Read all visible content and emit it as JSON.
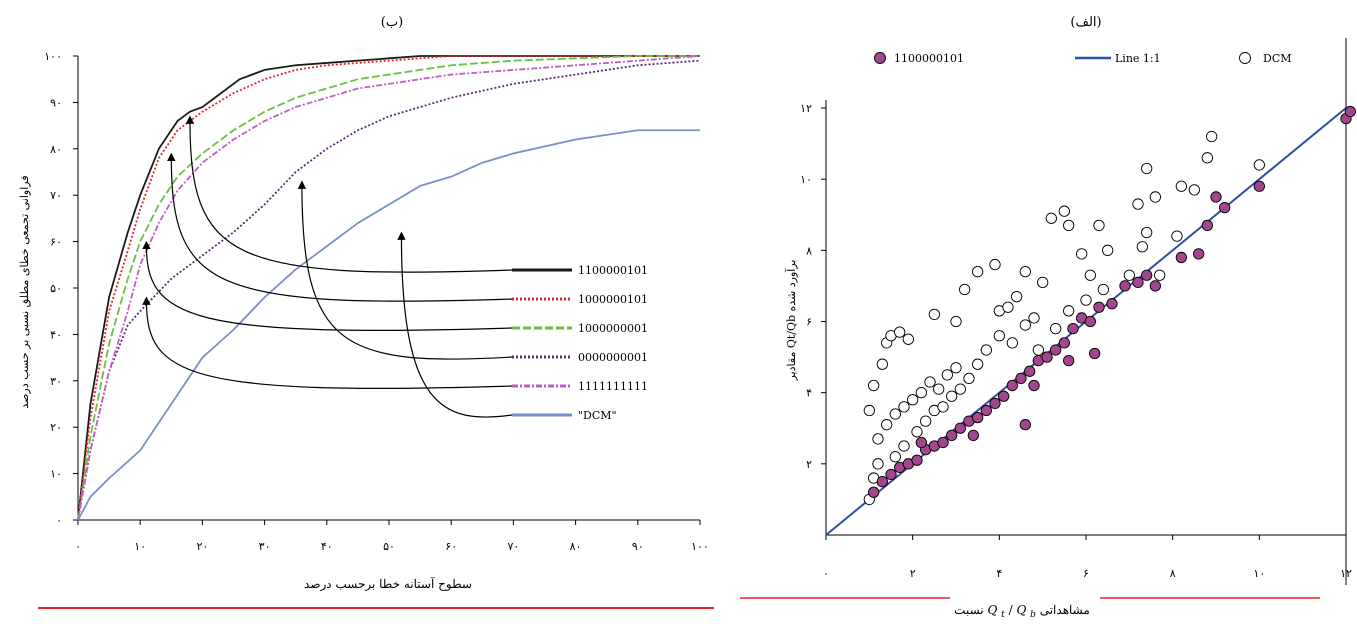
{
  "chart_data": [
    {
      "type": "line",
      "title": "(ب)",
      "xlabel": "سطوح آستانه خطا برحسب درصد",
      "ylabel": "فراوانی تجمعی خطای مطلق نسبی بر حسب درصد",
      "xlim": [
        0,
        100
      ],
      "ylim": [
        0,
        100
      ],
      "x_ticks": [
        "۰",
        "۱۰",
        "۲۰",
        "۳۰",
        "۴۰",
        "۵۰",
        "۶۰",
        "۷۰",
        "۸۰",
        "۹۰",
        "۱۰۰"
      ],
      "y_ticks": [
        "۰",
        "۱۰",
        "۲۰",
        "۳۰",
        "۴۰",
        "۵۰",
        "۶۰",
        "۷۰",
        "۸۰",
        "۹۰",
        "۱۰۰"
      ],
      "grid": false,
      "legend_position": "right",
      "series": [
        {
          "name": "1100000101",
          "color": "#1a1a1a",
          "style": "solid",
          "x": [
            0,
            2,
            5,
            8,
            10,
            13,
            16,
            18,
            20,
            23,
            26,
            30,
            35,
            40,
            45,
            50,
            55,
            60,
            70,
            80,
            90,
            100
          ],
          "y": [
            0,
            25,
            48,
            62,
            70,
            80,
            86,
            88,
            89,
            92,
            95,
            97,
            98,
            98.5,
            99,
            99.5,
            100,
            100,
            100,
            100,
            100,
            100
          ]
        },
        {
          "name": "1000000101",
          "color": "#e8202a",
          "style": "dot",
          "x": [
            0,
            2,
            5,
            8,
            10,
            13,
            16,
            20,
            25,
            30,
            35,
            40,
            50,
            60,
            70,
            80,
            90,
            100
          ],
          "y": [
            0,
            22,
            45,
            58,
            67,
            78,
            84,
            88,
            92,
            95,
            97,
            98,
            99,
            100,
            100,
            100,
            100,
            100
          ]
        },
        {
          "name": "1000000001",
          "color": "#6cbe45",
          "style": "dash",
          "x": [
            0,
            2,
            5,
            8,
            10,
            13,
            16,
            20,
            25,
            30,
            35,
            40,
            45,
            50,
            60,
            70,
            80,
            90,
            100
          ],
          "y": [
            0,
            18,
            38,
            52,
            60,
            68,
            74,
            79,
            84,
            88,
            91,
            93,
            95,
            96,
            98,
            99,
            99.5,
            100,
            100
          ]
        },
        {
          "name": "0000000001",
          "color": "#5b2c6f",
          "style": "dot",
          "x": [
            0,
            2,
            5,
            8,
            10,
            15,
            20,
            25,
            30,
            35,
            40,
            45,
            50,
            55,
            60,
            70,
            80,
            90,
            100
          ],
          "y": [
            0,
            15,
            32,
            42,
            45,
            52,
            57,
            62,
            68,
            75,
            80,
            84,
            87,
            89,
            91,
            94,
            96,
            98,
            99
          ]
        },
        {
          "name": "1111111111",
          "color": "#c05ec0",
          "style": "dash-dot",
          "x": [
            0,
            2,
            5,
            8,
            10,
            13,
            16,
            20,
            25,
            30,
            35,
            40,
            45,
            50,
            60,
            70,
            80,
            90,
            100
          ],
          "y": [
            0,
            15,
            32,
            45,
            55,
            64,
            71,
            77,
            82,
            86,
            89,
            91,
            93,
            94,
            96,
            97,
            98,
            99,
            100
          ]
        },
        {
          "name": "\"DCM\"",
          "color": "#7a8fca",
          "style": "solid",
          "x": [
            0,
            2,
            5,
            10,
            15,
            20,
            25,
            30,
            35,
            40,
            45,
            50,
            55,
            60,
            65,
            70,
            80,
            90,
            100
          ],
          "y": [
            0,
            5,
            9,
            15,
            25,
            35,
            41,
            48,
            54,
            59,
            64,
            68,
            72,
            74,
            77,
            79,
            82,
            84,
            84
          ]
        }
      ],
      "annotations_arrow_targets": [
        {
          "series": "1100000101",
          "x": 18,
          "y": 88
        },
        {
          "series": "1000000101",
          "x": 15,
          "y": 80
        },
        {
          "series": "1000000001",
          "x": 11,
          "y": 61
        },
        {
          "series": "0000000001",
          "x": 36,
          "y": 74
        },
        {
          "series": "1111111111",
          "x": 11,
          "y": 49
        },
        {
          "series": "\"DCM\"",
          "x": 52,
          "y": 63
        }
      ]
    },
    {
      "type": "scatter",
      "title": "(الف)",
      "xlabel_prefix": "نسبت ",
      "xlabel_math": "Q",
      "xlabel_sub1": "t",
      "xlabel_slash": "/",
      "xlabel_sub2": "b",
      "xlabel_suffix": " مشاهداتی",
      "ylabel": "مقادیر Qt/Qb برآورد شده",
      "xlim": [
        0,
        12
      ],
      "ylim": [
        0,
        12
      ],
      "x_ticks": [
        "۰",
        "۲",
        "۴",
        "۶",
        "۸",
        "۱۰",
        "۱۲"
      ],
      "y_ticks": [
        "۲",
        "۴",
        "۶",
        "۸",
        "۱۰",
        "۱۲"
      ],
      "grid": false,
      "legend_position": "top",
      "legend": [
        {
          "name": "1100000101",
          "marker": "filled-circle",
          "color": "#a2478f"
        },
        {
          "name": "Line 1:1",
          "marker": "line",
          "color": "#2e4fa3"
        },
        {
          "name": "DCM",
          "marker": "open-circle",
          "color": "#000000"
        }
      ],
      "series": [
        {
          "name": "1100000101",
          "marker": "filled",
          "color": "#a2478f",
          "points": [
            [
              1.1,
              1.2
            ],
            [
              1.3,
              1.5
            ],
            [
              1.5,
              1.7
            ],
            [
              1.7,
              1.9
            ],
            [
              1.9,
              2.0
            ],
            [
              2.1,
              2.1
            ],
            [
              2.3,
              2.4
            ],
            [
              2.5,
              2.5
            ],
            [
              2.7,
              2.6
            ],
            [
              2.9,
              2.8
            ],
            [
              3.1,
              3.0
            ],
            [
              3.3,
              3.2
            ],
            [
              3.5,
              3.3
            ],
            [
              3.7,
              3.5
            ],
            [
              3.9,
              3.7
            ],
            [
              4.1,
              3.9
            ],
            [
              4.3,
              4.2
            ],
            [
              4.5,
              4.4
            ],
            [
              4.7,
              4.6
            ],
            [
              4.9,
              4.9
            ],
            [
              5.1,
              5.0
            ],
            [
              5.3,
              5.2
            ],
            [
              5.5,
              5.4
            ],
            [
              5.7,
              5.8
            ],
            [
              5.9,
              6.1
            ],
            [
              6.1,
              6.0
            ],
            [
              6.3,
              6.4
            ],
            [
              6.6,
              6.5
            ],
            [
              6.9,
              7.0
            ],
            [
              7.2,
              7.1
            ],
            [
              7.4,
              7.3
            ],
            [
              7.6,
              7.0
            ],
            [
              8.2,
              7.8
            ],
            [
              8.6,
              7.9
            ],
            [
              8.8,
              8.7
            ],
            [
              9.0,
              9.5
            ],
            [
              9.2,
              9.2
            ],
            [
              10.0,
              9.8
            ],
            [
              12.0,
              11.7
            ],
            [
              12.1,
              11.9
            ],
            [
              2.2,
              2.6
            ],
            [
              3.4,
              2.8
            ],
            [
              4.8,
              4.2
            ],
            [
              5.6,
              4.9
            ],
            [
              6.2,
              5.1
            ],
            [
              4.6,
              3.1
            ]
          ]
        },
        {
          "name": "DCM",
          "marker": "open",
          "color": "#000000",
          "points": [
            [
              1.0,
              1.0
            ],
            [
              1.1,
              1.6
            ],
            [
              1.2,
              2.0
            ],
            [
              1.0,
              3.5
            ],
            [
              1.1,
              4.2
            ],
            [
              1.3,
              4.8
            ],
            [
              1.4,
              5.4
            ],
            [
              1.5,
              5.6
            ],
            [
              1.7,
              5.7
            ],
            [
              1.9,
              5.5
            ],
            [
              1.2,
              2.7
            ],
            [
              1.4,
              3.1
            ],
            [
              1.6,
              3.4
            ],
            [
              1.8,
              3.6
            ],
            [
              2.0,
              3.8
            ],
            [
              2.2,
              4.0
            ],
            [
              2.4,
              4.3
            ],
            [
              2.6,
              4.1
            ],
            [
              2.8,
              4.5
            ],
            [
              3.0,
              4.7
            ],
            [
              1.6,
              2.2
            ],
            [
              1.8,
              2.5
            ],
            [
              2.1,
              2.9
            ],
            [
              2.3,
              3.2
            ],
            [
              2.5,
              3.5
            ],
            [
              2.7,
              3.6
            ],
            [
              2.9,
              3.9
            ],
            [
              3.1,
              4.1
            ],
            [
              3.3,
              4.4
            ],
            [
              3.5,
              4.8
            ],
            [
              2.5,
              6.2
            ],
            [
              3.0,
              6.0
            ],
            [
              3.2,
              6.9
            ],
            [
              3.5,
              7.4
            ],
            [
              4.0,
              6.3
            ],
            [
              4.4,
              6.7
            ],
            [
              4.6,
              7.4
            ],
            [
              5.0,
              7.1
            ],
            [
              5.2,
              8.9
            ],
            [
              5.6,
              8.7
            ],
            [
              5.9,
              7.9
            ],
            [
              6.1,
              7.3
            ],
            [
              6.3,
              8.7
            ],
            [
              7.4,
              10.3
            ],
            [
              7.6,
              9.5
            ],
            [
              8.2,
              9.8
            ],
            [
              8.5,
              9.7
            ],
            [
              8.8,
              10.6
            ],
            [
              8.9,
              11.2
            ],
            [
              10.0,
              10.4
            ],
            [
              3.7,
              5.2
            ],
            [
              4.0,
              5.6
            ],
            [
              4.3,
              5.4
            ],
            [
              4.6,
              5.9
            ],
            [
              4.9,
              5.2
            ],
            [
              5.3,
              5.8
            ],
            [
              5.6,
              6.3
            ],
            [
              6.0,
              6.6
            ],
            [
              6.4,
              6.9
            ],
            [
              7.0,
              7.3
            ],
            [
              7.3,
              8.1
            ],
            [
              7.4,
              8.5
            ],
            [
              7.7,
              7.3
            ],
            [
              8.1,
              8.4
            ],
            [
              4.2,
              6.4
            ],
            [
              4.8,
              6.1
            ],
            [
              3.9,
              7.6
            ],
            [
              5.5,
              9.1
            ],
            [
              6.5,
              8.0
            ],
            [
              7.2,
              9.3
            ]
          ]
        }
      ],
      "line_1_to_1": {
        "name": "Line 1:1",
        "color": "#2e4fa3",
        "x": [
          0,
          12
        ],
        "y": [
          0,
          12
        ]
      }
    }
  ],
  "decor": {
    "red_rule_color": "#e8202a"
  }
}
